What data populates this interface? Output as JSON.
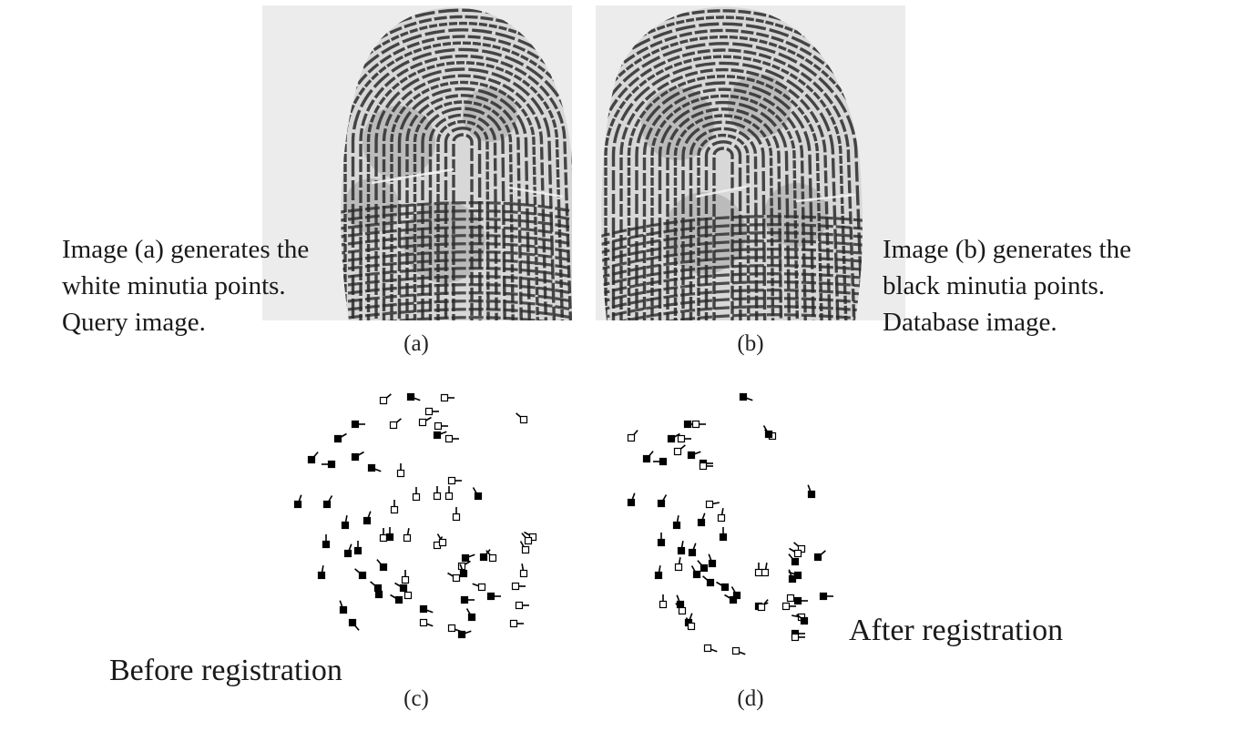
{
  "notes": {
    "query": {
      "line1": "Image (a) generates the",
      "line2": "white minutia points.",
      "line3": "Query image."
    },
    "database": {
      "line1": "Image (b) generates the",
      "line2": "black minutia points.",
      "line3": "Database image."
    }
  },
  "captions": {
    "a": "(a)",
    "b": "(b)",
    "c": "(c)",
    "d": "(d)"
  },
  "labels": {
    "before": "Before registration",
    "after": "After registration"
  },
  "colors": {
    "fingerprint_background": "#ececec",
    "ridge": "#2a2a2a",
    "minutia_black": "#000000",
    "minutia_white_fill": "#ffffff"
  }
}
